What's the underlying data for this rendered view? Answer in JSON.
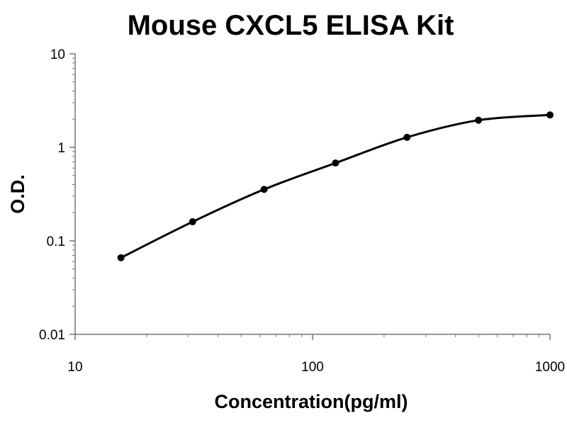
{
  "chart_data": {
    "type": "line",
    "title": "Mouse CXCL5 ELISA Kit",
    "xlabel": "Concentration(pg/ml)",
    "ylabel": "O.D.",
    "xscale": "log",
    "yscale": "log",
    "xlim": [
      10,
      1000
    ],
    "ylim": [
      0.01,
      10
    ],
    "xticks": [
      10,
      100,
      1000
    ],
    "xtick_labels": [
      "10",
      "100",
      "1000"
    ],
    "yticks": [
      0.01,
      0.1,
      1,
      10
    ],
    "ytick_labels": [
      "0.01",
      "0.1",
      "1",
      "10"
    ],
    "grid": false,
    "legend": false,
    "series": [
      {
        "x": [
          15.6,
          31.25,
          62.5,
          125,
          250,
          500,
          1000
        ],
        "y": [
          0.066,
          0.16,
          0.355,
          0.68,
          1.28,
          1.95,
          2.22
        ],
        "color": "#000000",
        "marker": "circle",
        "smooth": true
      }
    ]
  }
}
